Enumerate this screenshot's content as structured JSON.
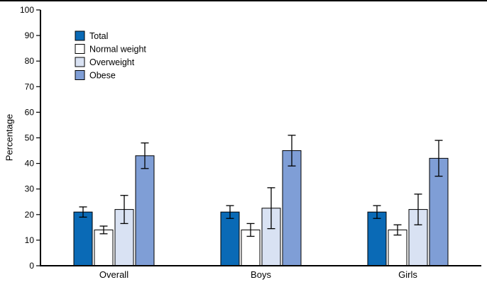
{
  "chart_data": {
    "type": "bar",
    "title": "",
    "xlabel": "",
    "ylabel": "Percentage",
    "ylim": [
      0,
      100
    ],
    "yticks": [
      0,
      10,
      20,
      30,
      40,
      50,
      60,
      70,
      80,
      90,
      100
    ],
    "grid": false,
    "legend_position": "top-left-inside",
    "categories": [
      "Overall",
      "Boys",
      "Girls"
    ],
    "series": [
      {
        "name": "Total",
        "color": "#0a6ab6",
        "values": [
          21,
          21,
          21
        ],
        "errors": [
          2,
          2.5,
          2.5
        ]
      },
      {
        "name": "Normal weight",
        "color": "#ffffff",
        "values": [
          14,
          14,
          14
        ],
        "errors": [
          1.5,
          2.5,
          2
        ]
      },
      {
        "name": "Overweight",
        "color": "#d9e2f3",
        "values": [
          22,
          22.5,
          22
        ],
        "errors": [
          5.5,
          8,
          6
        ]
      },
      {
        "name": "Obese",
        "color": "#7f9ed6",
        "values": [
          43,
          45,
          42
        ],
        "errors": [
          5,
          6,
          7
        ]
      }
    ]
  }
}
